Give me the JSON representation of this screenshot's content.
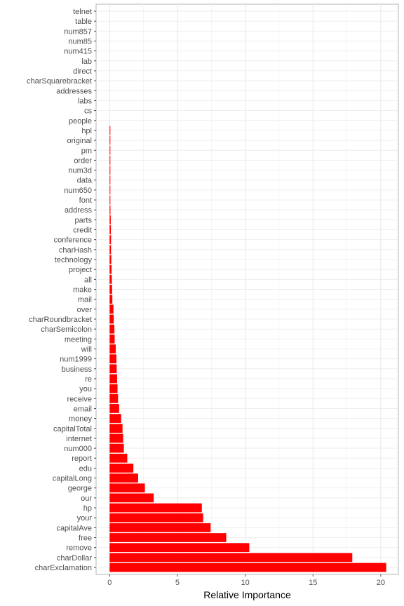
{
  "chart_data": {
    "type": "bar",
    "orientation": "horizontal",
    "title": "",
    "xlabel": "Relative Importance",
    "ylabel": "",
    "xlim": [
      -1.0,
      21.3
    ],
    "x_ticks": [
      0,
      5,
      10,
      15,
      20
    ],
    "grid": true,
    "legend": "none",
    "bar_color": "#ff0000",
    "categories": [
      "telnet",
      "table",
      "num857",
      "num85",
      "num415",
      "lab",
      "direct",
      "charSquarebracket",
      "addresses",
      "labs",
      "cs",
      "people",
      "hpl",
      "original",
      "pm",
      "order",
      "num3d",
      "data",
      "num650",
      "font",
      "address",
      "parts",
      "credit",
      "conference",
      "charHash",
      "technology",
      "project",
      "all",
      "make",
      "mail",
      "over",
      "charRoundbracket",
      "charSemicolon",
      "meeting",
      "will",
      "num1999",
      "business",
      "re",
      "you",
      "receive",
      "email",
      "money",
      "capitalTotal",
      "internet",
      "num000",
      "report",
      "edu",
      "capitalLong",
      "george",
      "our",
      "hp",
      "your",
      "capitalAve",
      "free",
      "remove",
      "charDollar",
      "charExclamation"
    ],
    "values": [
      0,
      0,
      0,
      0,
      0,
      0,
      0,
      0,
      0,
      0,
      0,
      0,
      0.04,
      0.04,
      0.04,
      0.04,
      0.04,
      0.04,
      0.05,
      0.05,
      0.06,
      0.08,
      0.09,
      0.1,
      0.1,
      0.12,
      0.14,
      0.16,
      0.18,
      0.2,
      0.28,
      0.3,
      0.35,
      0.37,
      0.45,
      0.5,
      0.52,
      0.55,
      0.58,
      0.62,
      0.7,
      0.85,
      0.95,
      1.0,
      1.05,
      1.3,
      1.75,
      2.1,
      2.6,
      3.25,
      6.8,
      6.9,
      7.45,
      8.6,
      10.3,
      17.9,
      20.4
    ]
  }
}
